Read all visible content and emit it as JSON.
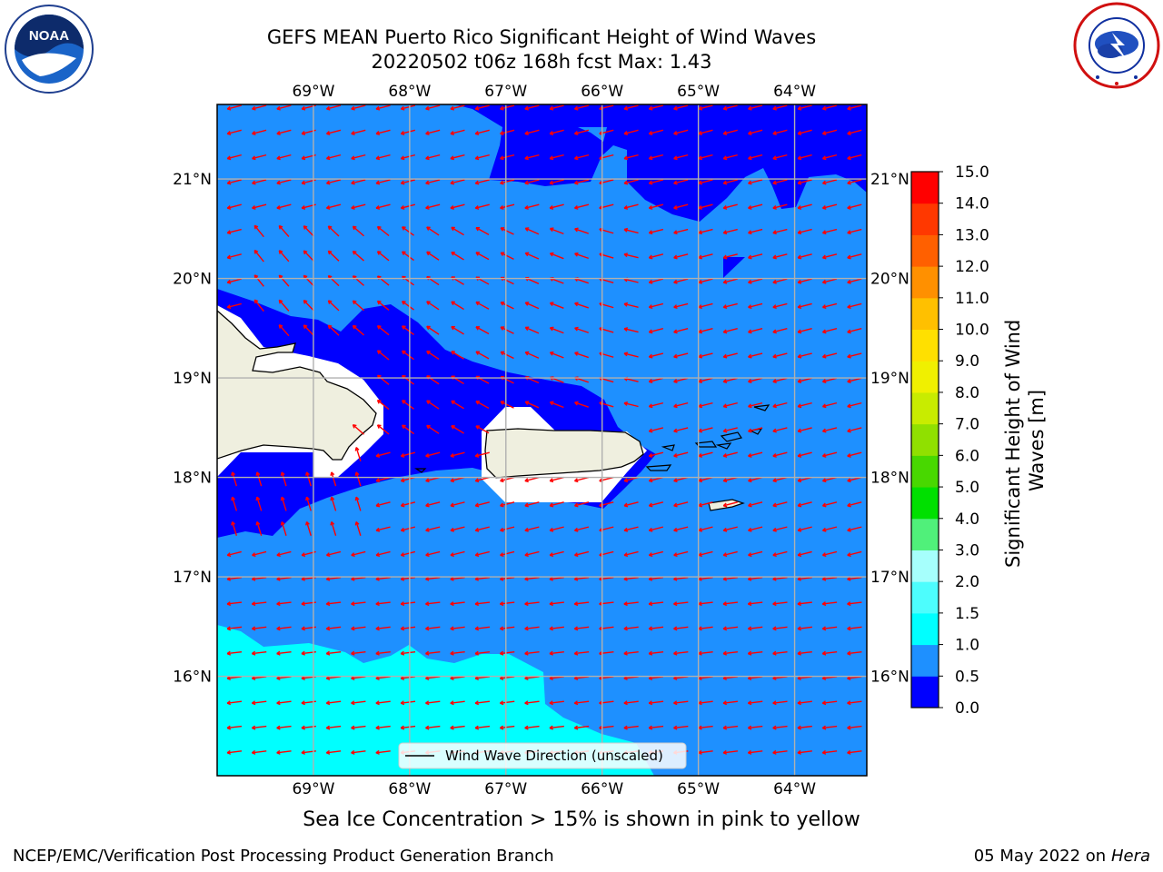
{
  "header": {
    "title_line1": "GEFS MEAN Puerto Rico Significant Height of Wind Waves",
    "title_line2": "20220502 t06z 168h fcst   Max: 1.43"
  },
  "map": {
    "lon_labels": [
      "69°W",
      "68°W",
      "67°W",
      "66°W",
      "65°W",
      "64°W"
    ],
    "lat_labels": [
      "21°N",
      "20°N",
      "19°N",
      "18°N",
      "17°N",
      "16°N"
    ],
    "lon_range": [
      -70.0,
      -63.25
    ],
    "lat_range": [
      15.0,
      21.75
    ],
    "legend_label": "Wind Wave Direction (unscaled)",
    "colors": {
      "band_0_0_5": "#0000ff",
      "band_0_5_1_0": "#1e90ff",
      "band_1_0_1_5": "#00ffff",
      "land": "#efefdf",
      "arrow": "#ff0000",
      "grid": "#b0b0b0"
    }
  },
  "colorbar": {
    "label": "Significant Height of Wind Waves [m]",
    "ticks": [
      "0.0",
      "0.5",
      "1.0",
      "1.5",
      "2.0",
      "3.0",
      "4.0",
      "5.0",
      "6.0",
      "7.0",
      "8.0",
      "9.0",
      "10.0",
      "11.0",
      "12.0",
      "13.0",
      "14.0",
      "15.0"
    ],
    "colors": [
      "#0000ff",
      "#1e90ff",
      "#00ffff",
      "#4dfdfd",
      "#a6fffc",
      "#50f07a",
      "#00e000",
      "#48d800",
      "#90e000",
      "#c8ec00",
      "#f0f000",
      "#ffe000",
      "#ffc000",
      "#ff9000",
      "#ff6000",
      "#ff3800",
      "#ff0000"
    ]
  },
  "footer": {
    "caption": "Sea Ice Concentration > 15% is shown in pink to yellow",
    "branch": "NCEP/EMC/Verification Post Processing Product Generation Branch",
    "date": "05 May 2022 on",
    "machine": "Hera"
  },
  "logos": {
    "noaa_text": "NOAA",
    "nws_text": "NATIONAL WEATHER SERVICE"
  }
}
